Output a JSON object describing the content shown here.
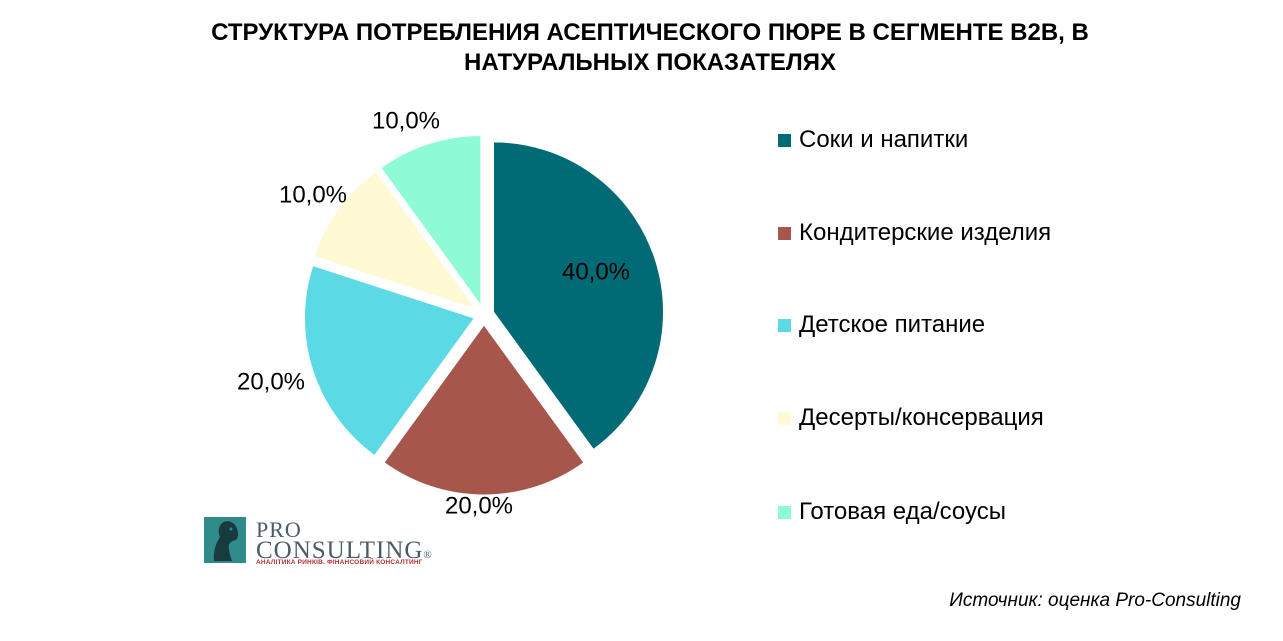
{
  "chart_data": {
    "type": "pie",
    "title": "СТРУКТУРА ПОТРЕБЛЕНИЯ АСЕПТИЧЕСКОГО ПЮРЕ В СЕГМЕНТЕ B2B, В НАТУРАЛЬНЫХ ПОКАЗАТЕЛЯХ",
    "categories": [
      "Соки и напитки",
      "Кондитерские изделия",
      "Детское питание",
      "Десерты/консервация",
      "Готовая еда/соусы"
    ],
    "values": [
      40.0,
      20.0,
      20.0,
      10.0,
      10.0
    ],
    "labels": [
      "40,0%",
      "20,0%",
      "20,0%",
      "10,0%",
      "10,0%"
    ],
    "colors": [
      "#006b74",
      "#a6564b",
      "#5bdae6",
      "#fff9d4",
      "#8ffbd6"
    ],
    "legend_position": "right"
  },
  "source": "Источник: оценка Pro-Consulting",
  "logo": {
    "line1": "PRO",
    "line2": "CONSULTING",
    "reg": "®",
    "tagline": "АНАЛІТИКА РИНКІВ. ФІНАНСОВИЙ КОНСАЛТИНГ",
    "icon": "horse-head-icon"
  }
}
